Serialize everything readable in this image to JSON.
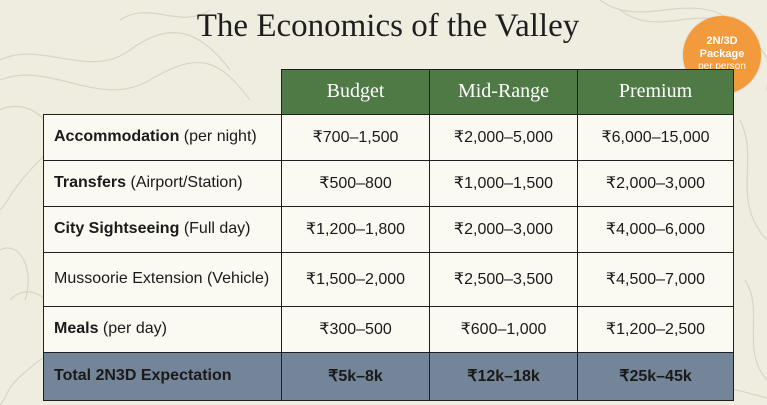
{
  "title": "The Economics of the Valley",
  "badge": {
    "line1": "2N/3D",
    "line2": "Package",
    "line3": "per person"
  },
  "columns": [
    "Budget",
    "Mid-Range",
    "Premium"
  ],
  "rows": [
    {
      "label": "Accommodation",
      "sub": "(per night)",
      "values": [
        "₹700–1,500",
        "₹2,000–5,000",
        "₹6,000–15,000"
      ]
    },
    {
      "label": "Transfers",
      "sub": "(Airport/Station)",
      "values": [
        "₹500–800",
        "₹1,000–1,500",
        "₹2,000–3,000"
      ]
    },
    {
      "label": "City Sightseeing",
      "sub": "(Full day)",
      "values": [
        "₹1,200–1,800",
        "₹2,000–3,000",
        "₹4,000–6,000"
      ]
    },
    {
      "label": "Mussoorie Extension (Vehicle)",
      "values": [
        "₹1,500–2,000",
        "₹2,500–3,500",
        "₹4,500–7,000"
      ]
    },
    {
      "label": "Meals",
      "sub": "(per day)",
      "values": [
        "₹300–500",
        "₹600–1,000",
        "₹1,200–2,500"
      ]
    }
  ],
  "total": {
    "label": "Total 2N3D Expectation",
    "values": [
      "₹5k–8k",
      "₹12k–18k",
      "₹25k–45k"
    ]
  },
  "colors": {
    "header": "#4f7a45",
    "total_row": "#748599",
    "badge": "#f39a3c",
    "background": "#efede0"
  }
}
